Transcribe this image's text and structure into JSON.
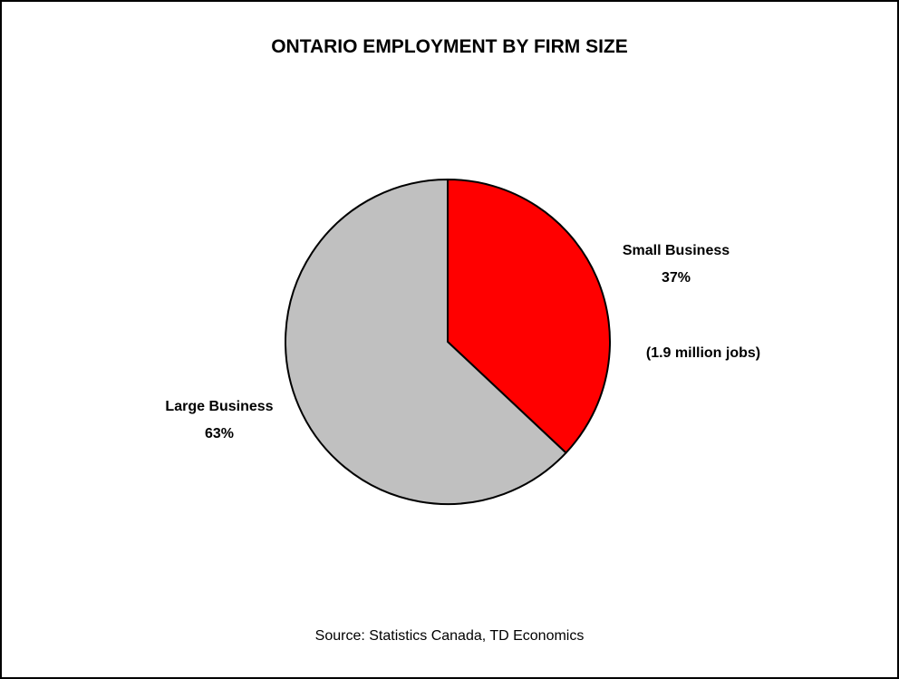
{
  "chart_data": {
    "type": "pie",
    "title": "ONTARIO EMPLOYMENT BY FIRM SIZE",
    "slices": [
      {
        "name": "Small Business",
        "value": 37,
        "label": "37%",
        "color": "#ff0000"
      },
      {
        "name": "Large Business",
        "value": 63,
        "label": "63%",
        "color": "#c0c0c0"
      }
    ],
    "annotation": "(1.9 million jobs)",
    "source": "Source: Statistics Canada, TD Economics",
    "legend": "none"
  }
}
